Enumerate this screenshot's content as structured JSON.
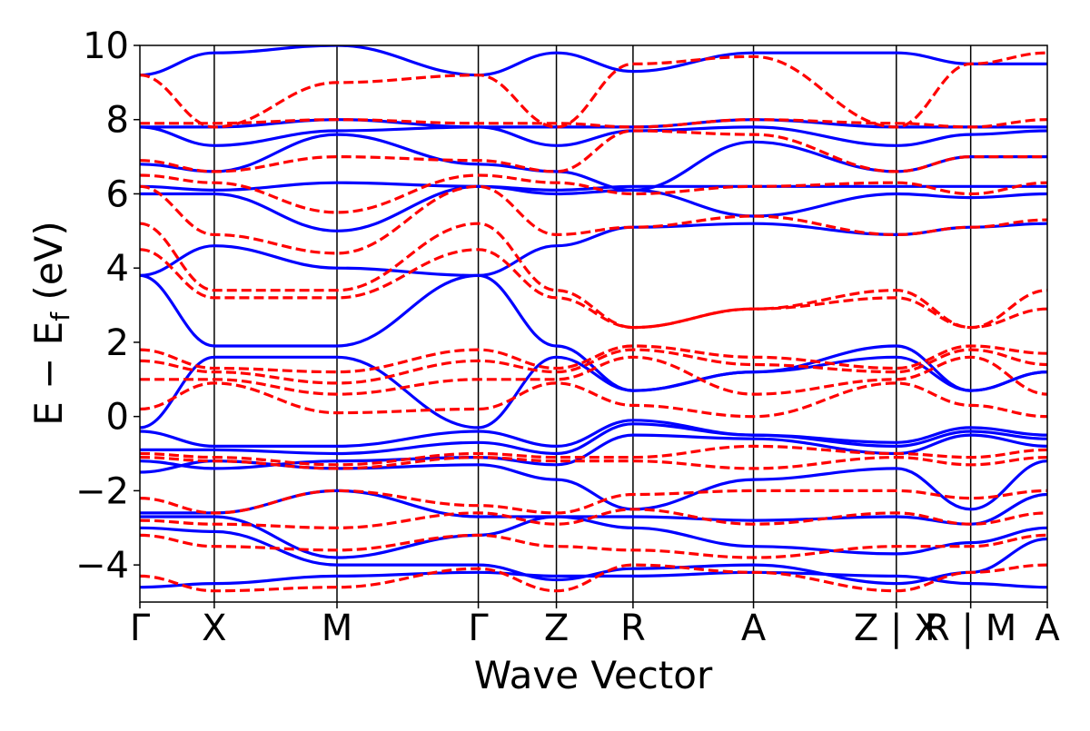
{
  "chart_data": {
    "type": "line",
    "title": "",
    "xlabel": "Wave Vector",
    "ylabel": "E − E",
    "ylabel_subscript": "f",
    "ylabel_unit": " (eV)",
    "ylim": [
      -5,
      10
    ],
    "yticks": [
      -4,
      -2,
      0,
      2,
      4,
      6,
      8,
      10
    ],
    "ytick_labels": [
      "−4",
      "−2",
      "0",
      "2",
      "4",
      "6",
      "8",
      "10"
    ],
    "x_range": [
      0,
      12.2
    ],
    "kpoint_positions": [
      0,
      1.0,
      2.65,
      4.55,
      5.6,
      6.63,
      8.25,
      10.17,
      11.17,
      12.2
    ],
    "kpoint_labels": [
      "Γ",
      "X",
      "M",
      "Γ",
      "Z",
      "R",
      "A",
      "Z | X",
      "R | M",
      "A"
    ],
    "colors": {
      "series_a": "#0000ff",
      "series_b": "#ff0000"
    },
    "series": [
      {
        "style": "solid",
        "color": "#0000ff",
        "bands": [
          [
            -4.6,
            -4.5,
            -4.3,
            -4.2,
            -4.3,
            -4.3,
            -4.2,
            -4.3,
            -4.5,
            -4.6
          ],
          [
            -3.0,
            -3.1,
            -4.0,
            -4.0,
            -4.4,
            -4.1,
            -4.0,
            -4.5,
            -4.2,
            -3.3
          ],
          [
            -2.7,
            -2.7,
            -3.8,
            -3.2,
            -2.7,
            -3.0,
            -3.5,
            -3.7,
            -3.4,
            -3.0
          ],
          [
            -2.6,
            -2.6,
            -2.0,
            -2.7,
            -2.7,
            -2.7,
            -2.8,
            -2.7,
            -2.9,
            -2.1
          ],
          [
            -1.5,
            -1.2,
            -1.4,
            -1.3,
            -1.7,
            -2.5,
            -1.7,
            -1.4,
            -2.5,
            -1.2
          ],
          [
            -1.2,
            -1.4,
            -1.2,
            -1.1,
            -1.3,
            -0.5,
            -0.6,
            -1.0,
            -0.5,
            -0.8
          ],
          [
            -0.9,
            -0.9,
            -1.0,
            -0.7,
            -1.0,
            -0.2,
            -0.5,
            -0.8,
            -0.4,
            -0.6
          ],
          [
            -0.4,
            -0.8,
            -0.8,
            -0.4,
            -0.8,
            -0.1,
            -0.5,
            -0.7,
            -0.3,
            -0.5
          ],
          [
            -0.3,
            1.6,
            1.6,
            -0.3,
            1.6,
            0.7,
            1.2,
            1.6,
            0.7,
            1.2
          ],
          [
            3.8,
            1.9,
            1.9,
            3.8,
            1.9,
            0.7,
            1.2,
            1.9,
            0.7,
            1.2
          ],
          [
            3.8,
            4.6,
            4.0,
            3.8,
            4.6,
            5.1,
            5.2,
            4.9,
            5.1,
            5.2
          ],
          [
            6.0,
            6.0,
            5.0,
            6.2,
            6.0,
            6.1,
            5.4,
            6.0,
            5.9,
            6.0
          ],
          [
            6.2,
            6.1,
            6.3,
            6.2,
            6.1,
            6.2,
            6.2,
            6.2,
            6.2,
            6.2
          ],
          [
            6.8,
            6.6,
            7.6,
            6.8,
            6.6,
            6.1,
            7.4,
            6.6,
            7.0,
            7.0
          ],
          [
            7.8,
            7.3,
            7.7,
            7.8,
            7.3,
            7.7,
            7.8,
            7.3,
            7.6,
            7.7
          ],
          [
            7.8,
            7.8,
            8.0,
            7.8,
            7.8,
            7.8,
            8.0,
            7.8,
            7.8,
            7.8
          ],
          [
            9.2,
            9.8,
            10.0,
            9.2,
            9.8,
            9.3,
            9.8,
            9.8,
            9.5,
            9.5
          ]
        ]
      },
      {
        "style": "dashed",
        "color": "#ff0000",
        "bands": [
          [
            -4.3,
            -4.7,
            -4.6,
            -4.1,
            -4.7,
            -4.0,
            -4.2,
            -4.7,
            -4.2,
            -4.0
          ],
          [
            -3.2,
            -3.5,
            -3.6,
            -3.2,
            -3.5,
            -3.6,
            -3.8,
            -3.5,
            -3.5,
            -3.2
          ],
          [
            -2.8,
            -2.9,
            -3.0,
            -2.6,
            -2.9,
            -2.5,
            -2.9,
            -2.6,
            -2.9,
            -2.6
          ],
          [
            -2.2,
            -2.6,
            -2.0,
            -2.4,
            -2.6,
            -2.1,
            -2.0,
            -2.0,
            -2.2,
            -2.0
          ],
          [
            -1.1,
            -1.2,
            -1.4,
            -1.1,
            -1.2,
            -1.2,
            -1.4,
            -1.1,
            -1.3,
            -1.1
          ],
          [
            -1.0,
            -1.1,
            -1.3,
            -1.0,
            -1.1,
            -1.1,
            -0.8,
            -1.0,
            -1.1,
            -0.9
          ],
          [
            0.2,
            0.9,
            0.1,
            0.2,
            0.9,
            0.3,
            0.0,
            0.9,
            0.3,
            0.0
          ],
          [
            1.0,
            1.0,
            0.6,
            1.0,
            1.0,
            1.6,
            0.6,
            1.0,
            1.6,
            0.6
          ],
          [
            1.5,
            1.2,
            0.9,
            1.5,
            1.2,
            1.8,
            1.4,
            1.2,
            1.8,
            1.4
          ],
          [
            1.8,
            1.3,
            1.2,
            1.8,
            1.3,
            1.9,
            1.6,
            1.3,
            1.9,
            1.7
          ],
          [
            4.5,
            3.2,
            3.2,
            4.5,
            3.2,
            2.4,
            2.9,
            3.2,
            2.4,
            2.9
          ],
          [
            5.2,
            3.4,
            3.4,
            5.2,
            3.4,
            2.4,
            2.9,
            3.4,
            2.4,
            3.4
          ],
          [
            6.2,
            4.9,
            4.4,
            6.2,
            4.9,
            5.1,
            5.4,
            4.9,
            5.1,
            5.3
          ],
          [
            6.5,
            6.3,
            5.5,
            6.5,
            6.3,
            6.0,
            6.2,
            6.3,
            6.0,
            6.3
          ],
          [
            6.9,
            6.6,
            7.0,
            6.9,
            6.6,
            7.7,
            7.6,
            6.6,
            7.0,
            7.0
          ],
          [
            7.9,
            7.9,
            8.0,
            7.9,
            7.9,
            7.8,
            8.0,
            7.9,
            7.8,
            8.0
          ],
          [
            9.2,
            7.8,
            9.0,
            9.2,
            7.8,
            9.5,
            9.7,
            7.8,
            9.5,
            9.8
          ]
        ]
      }
    ]
  }
}
